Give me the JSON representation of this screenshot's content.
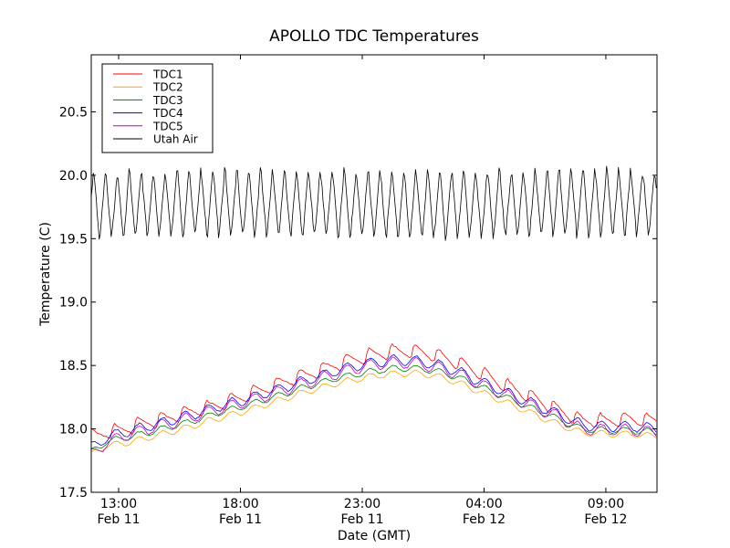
{
  "chart_data": {
    "type": "line",
    "title": "APOLLO TDC Temperatures",
    "xlabel": "Date (GMT)",
    "ylabel": "Temperature (C)",
    "x_unit": "hours since Feb 11 00:00 GMT",
    "xlim": [
      11.875,
      35.1
    ],
    "ylim": [
      17.5,
      20.95
    ],
    "grid": false,
    "legend_position": "top-left",
    "x_ticks": [
      {
        "value": 13,
        "line1": "13:00",
        "line2": "Feb 11"
      },
      {
        "value": 18,
        "line1": "18:00",
        "line2": "Feb 11"
      },
      {
        "value": 23,
        "line1": "23:00",
        "line2": "Feb 11"
      },
      {
        "value": 28,
        "line1": "04:00",
        "line2": "Feb 12"
      },
      {
        "value": 33,
        "line1": "09:00",
        "line2": "Feb 12"
      }
    ],
    "y_ticks": [
      {
        "value": 17.5,
        "label": "17.5"
      },
      {
        "value": 18.0,
        "label": "18.0"
      },
      {
        "value": 18.5,
        "label": "18.5"
      },
      {
        "value": 19.0,
        "label": "19.0"
      },
      {
        "value": 19.5,
        "label": "19.5"
      },
      {
        "value": 20.0,
        "label": "20.0"
      },
      {
        "value": 20.5,
        "label": "20.5"
      }
    ],
    "series": [
      {
        "name": "TDC1",
        "color": "#ff0000",
        "baseline": [
          [
            11.9,
            17.93
          ],
          [
            12.5,
            17.97
          ],
          [
            13,
            17.98
          ],
          [
            14,
            18.04
          ],
          [
            15,
            18.08
          ],
          [
            16,
            18.13
          ],
          [
            17,
            18.18
          ],
          [
            18,
            18.24
          ],
          [
            19,
            18.31
          ],
          [
            20,
            18.38
          ],
          [
            21,
            18.44
          ],
          [
            22,
            18.51
          ],
          [
            23,
            18.56
          ],
          [
            24,
            18.6
          ],
          [
            25,
            18.61
          ],
          [
            26,
            18.58
          ],
          [
            27,
            18.51
          ],
          [
            28,
            18.42
          ],
          [
            29,
            18.33
          ],
          [
            30,
            18.24
          ],
          [
            31,
            18.15
          ],
          [
            32,
            18.06
          ],
          [
            33,
            18.06
          ],
          [
            34,
            18.07
          ],
          [
            35.1,
            18.06
          ]
        ],
        "ripple_amplitude": 0.07,
        "ripple_period_h": 0.95,
        "ripple_shape": "sawtooth"
      },
      {
        "name": "TDC2",
        "color": "#ffa500",
        "baseline": [
          [
            11.9,
            17.8
          ],
          [
            12.5,
            17.87
          ],
          [
            13,
            17.88
          ],
          [
            14,
            17.92
          ],
          [
            15,
            17.97
          ],
          [
            16,
            18.02
          ],
          [
            17,
            18.08
          ],
          [
            18,
            18.13
          ],
          [
            19,
            18.19
          ],
          [
            20,
            18.25
          ],
          [
            21,
            18.31
          ],
          [
            22,
            18.36
          ],
          [
            23,
            18.4
          ],
          [
            24,
            18.43
          ],
          [
            25,
            18.44
          ],
          [
            26,
            18.42
          ],
          [
            27,
            18.36
          ],
          [
            28,
            18.28
          ],
          [
            29,
            18.2
          ],
          [
            30,
            18.12
          ],
          [
            31,
            18.04
          ],
          [
            32,
            17.97
          ],
          [
            33,
            17.96
          ],
          [
            34,
            17.96
          ],
          [
            35.1,
            17.94
          ]
        ],
        "ripple_amplitude": 0.025,
        "ripple_period_h": 0.95,
        "ripple_shape": "sine"
      },
      {
        "name": "TDC3",
        "color": "#008000",
        "baseline": [
          [
            11.9,
            17.82
          ],
          [
            12.5,
            17.9
          ],
          [
            13,
            17.92
          ],
          [
            14,
            17.96
          ],
          [
            15,
            18.01
          ],
          [
            16,
            18.06
          ],
          [
            17,
            18.12
          ],
          [
            18,
            18.17
          ],
          [
            19,
            18.23
          ],
          [
            20,
            18.29
          ],
          [
            21,
            18.35
          ],
          [
            22,
            18.4
          ],
          [
            23,
            18.44
          ],
          [
            24,
            18.47
          ],
          [
            25,
            18.48
          ],
          [
            26,
            18.46
          ],
          [
            27,
            18.4
          ],
          [
            28,
            18.32
          ],
          [
            29,
            18.24
          ],
          [
            30,
            18.16
          ],
          [
            31,
            18.08
          ],
          [
            32,
            18.0
          ],
          [
            33,
            17.99
          ],
          [
            34,
            17.99
          ],
          [
            35.1,
            17.97
          ]
        ],
        "ripple_amplitude": 0.025,
        "ripple_period_h": 0.95,
        "ripple_shape": "sine"
      },
      {
        "name": "TDC4",
        "color": "#0000ff",
        "baseline": [
          [
            11.9,
            17.85
          ],
          [
            12.5,
            17.93
          ],
          [
            13,
            17.96
          ],
          [
            14,
            18.01
          ],
          [
            15,
            18.06
          ],
          [
            16,
            18.11
          ],
          [
            17,
            18.17
          ],
          [
            18,
            18.22
          ],
          [
            19,
            18.28
          ],
          [
            20,
            18.34
          ],
          [
            21,
            18.4
          ],
          [
            22,
            18.46
          ],
          [
            23,
            18.51
          ],
          [
            24,
            18.54
          ],
          [
            25,
            18.54
          ],
          [
            26,
            18.51
          ],
          [
            27,
            18.45
          ],
          [
            28,
            18.36
          ],
          [
            29,
            18.28
          ],
          [
            30,
            18.2
          ],
          [
            31,
            18.12
          ],
          [
            32,
            18.03
          ],
          [
            33,
            18.02
          ],
          [
            34,
            18.02
          ],
          [
            35.1,
            18.0
          ]
        ],
        "ripple_amplitude": 0.04,
        "ripple_period_h": 0.95,
        "ripple_shape": "sine"
      },
      {
        "name": "TDC5",
        "color": "#bf00bf",
        "baseline": [
          [
            11.9,
            17.79
          ],
          [
            12.5,
            17.89
          ],
          [
            13,
            17.93
          ],
          [
            14,
            17.99
          ],
          [
            15,
            18.04
          ],
          [
            16,
            18.09
          ],
          [
            17,
            18.15
          ],
          [
            18,
            18.2
          ],
          [
            19,
            18.26
          ],
          [
            20,
            18.32
          ],
          [
            21,
            18.38
          ],
          [
            22,
            18.44
          ],
          [
            23,
            18.49
          ],
          [
            24,
            18.52
          ],
          [
            25,
            18.52
          ],
          [
            26,
            18.49
          ],
          [
            27,
            18.43
          ],
          [
            28,
            18.34
          ],
          [
            29,
            18.26
          ],
          [
            30,
            18.18
          ],
          [
            31,
            18.1
          ],
          [
            32,
            18.0
          ],
          [
            33,
            17.99
          ],
          [
            34,
            17.99
          ],
          [
            35.1,
            17.97
          ]
        ],
        "ripple_amplitude": 0.045,
        "ripple_period_h": 0.95,
        "ripple_shape": "sine"
      },
      {
        "name": "Utah Air",
        "color": "#000000",
        "baseline": [
          [
            11.9,
            19.77
          ],
          [
            13,
            19.76
          ],
          [
            16,
            19.78
          ],
          [
            20,
            19.78
          ],
          [
            24,
            19.77
          ],
          [
            28,
            19.77
          ],
          [
            32,
            19.79
          ],
          [
            35.1,
            19.78
          ]
        ],
        "ripple_amplitude": 0.29,
        "ripple_period_h": 0.49,
        "ripple_shape": "triangle",
        "extremes": {
          "max": 20.22,
          "min": 19.41
        }
      }
    ]
  }
}
